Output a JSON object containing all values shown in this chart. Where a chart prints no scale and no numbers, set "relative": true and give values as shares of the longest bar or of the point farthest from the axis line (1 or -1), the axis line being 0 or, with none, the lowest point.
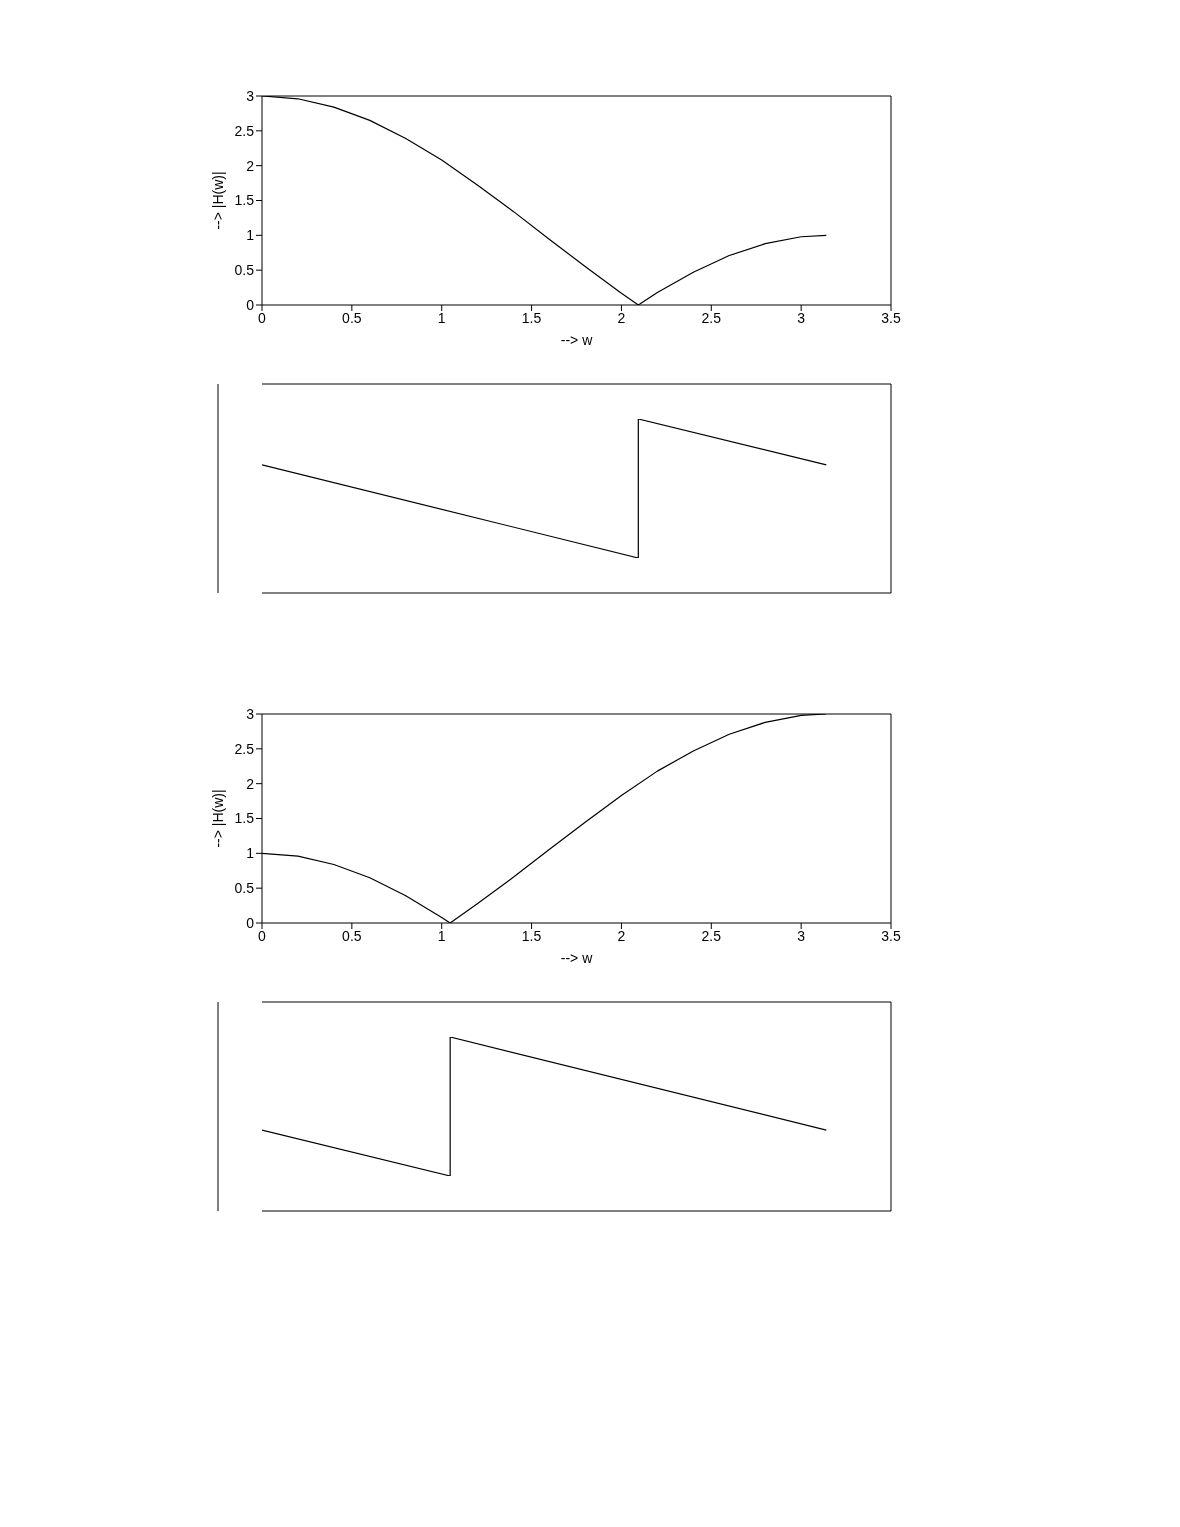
{
  "chart_data": [
    {
      "type": "line",
      "xlabel": "-->  w",
      "ylabel": "-->  |H(w)|",
      "xlim": [
        0,
        3.5
      ],
      "xticks": [
        0,
        0.5,
        1,
        1.5,
        2,
        2.5,
        3,
        3.5
      ],
      "ylim": [
        0,
        3
      ],
      "yticks": [
        0,
        0.5,
        1,
        1.5,
        2,
        2.5,
        3
      ],
      "series": [
        {
          "color": "#000000",
          "x": [
            0,
            0.2,
            0.4,
            0.6,
            0.8,
            1.0,
            1.2,
            1.4,
            1.6,
            1.8,
            2.0,
            2.094,
            2.2,
            2.4,
            2.6,
            2.8,
            3.0,
            3.14
          ],
          "values": [
            3,
            2.96,
            2.84,
            2.65,
            2.39,
            2.08,
            1.72,
            1.34,
            0.94,
            0.55,
            0.17,
            0,
            0.18,
            0.47,
            0.71,
            0.88,
            0.98,
            1
          ]
        }
      ]
    },
    {
      "type": "line",
      "relative": true,
      "tick_labels": false,
      "xlim": [
        0,
        3.5
      ],
      "xticks": [
        0,
        0.5,
        1,
        1.5,
        2,
        2.5,
        3,
        3.5
      ],
      "series": [
        {
          "color": "#000000",
          "x": [
            0,
            2.094,
            2.094,
            3.14
          ],
          "values": [
            0.67,
            0,
            1,
            0.67
          ]
        }
      ]
    },
    {
      "type": "line",
      "xlabel": "-->  w",
      "ylabel": "-->  |H(w)|",
      "xlim": [
        0,
        3.5
      ],
      "xticks": [
        0,
        0.5,
        1,
        1.5,
        2,
        2.5,
        3,
        3.5
      ],
      "ylim": [
        0,
        3
      ],
      "yticks": [
        0,
        0.5,
        1,
        1.5,
        2,
        2.5,
        3
      ],
      "series": [
        {
          "color": "#000000",
          "x": [
            0,
            0.2,
            0.4,
            0.6,
            0.8,
            1.0,
            1.047,
            1.2,
            1.4,
            1.6,
            1.8,
            2.0,
            2.2,
            2.4,
            2.6,
            2.8,
            3.0,
            3.14
          ],
          "values": [
            1,
            0.96,
            0.84,
            0.65,
            0.39,
            0.08,
            0,
            0.28,
            0.66,
            1.06,
            1.45,
            1.83,
            2.18,
            2.47,
            2.71,
            2.88,
            2.98,
            3
          ]
        }
      ]
    },
    {
      "type": "line",
      "relative": true,
      "tick_labels": false,
      "xlim": [
        0,
        3.5
      ],
      "xticks": [
        0,
        0.5,
        1,
        1.5,
        2,
        2.5,
        3,
        3.5
      ],
      "series": [
        {
          "color": "#000000",
          "x": [
            0,
            1.047,
            1.047,
            3.14
          ],
          "values": [
            0.33,
            0,
            1,
            0.33
          ]
        }
      ]
    }
  ]
}
